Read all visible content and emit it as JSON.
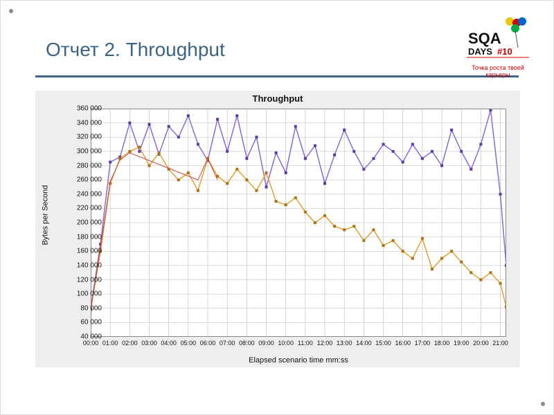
{
  "slide": {
    "title": "Отчет 2. Throughput",
    "underline_color": "#3c6482",
    "title_color": "#3c6482",
    "title_fontsize": 28
  },
  "logo": {
    "main": "SQA",
    "sub": "DAYS#10",
    "tagline": "Точка роста твоей карьеры",
    "balloon_colors": [
      "#e8c800",
      "#cc0000",
      "#0066cc",
      "#00aa44"
    ]
  },
  "chart": {
    "type": "line",
    "title": "Throughput",
    "title_fontsize": 13,
    "xlabel": "Elapsed scenario time mm:ss",
    "ylabel": "Bytes per Second",
    "label_fontsize": 11,
    "background_color": "#eeeeee",
    "plot_bg_color": "#ffffff",
    "grid_color": "#bbbbbb",
    "grid_on": true,
    "border_color": "#888888",
    "ylim": [
      40000,
      360000
    ],
    "ytick_step": 20000,
    "ytick_labels": [
      "40 000",
      "60 000",
      "80 000",
      "100 000",
      "120 000",
      "140 000",
      "160 000",
      "180 000",
      "200 000",
      "220 000",
      "240 000",
      "260 000",
      "280 000",
      "300 000",
      "320 000",
      "340 000",
      "360 000"
    ],
    "xtick_labels": [
      "00:00",
      "01:00",
      "02:00",
      "03:00",
      "04:00",
      "05:00",
      "06:00",
      "07:00",
      "08:00",
      "09:00",
      "10:00",
      "11:00",
      "12:00",
      "13:00",
      "14:00",
      "15:00",
      "16:00",
      "17:00",
      "18:00",
      "19:00",
      "20:00",
      "21:00"
    ],
    "x_categories_minutes": [
      0,
      0.5,
      1,
      1.5,
      2,
      2.5,
      3,
      3.5,
      4,
      4.5,
      5,
      5.5,
      6,
      6.5,
      7,
      7.5,
      8,
      8.5,
      9,
      9.5,
      10,
      10.5,
      11,
      11.5,
      12,
      12.5,
      13,
      13.5,
      14,
      14.5,
      15,
      15.5,
      16,
      16.5,
      17,
      17.5,
      18,
      18.5,
      19,
      19.5,
      20,
      20.5,
      21,
      21.3
    ],
    "xlim": [
      0,
      21.3
    ],
    "series": [
      {
        "name": "purple",
        "color": "#8a6bd6",
        "line_width": 1.5,
        "marker": "square",
        "marker_size": 4,
        "marker_color": "#5a3aa6",
        "values": [
          80000,
          170000,
          285000,
          292000,
          340000,
          300000,
          338000,
          296000,
          335000,
          320000,
          350000,
          310000,
          287000,
          345000,
          300000,
          350000,
          290000,
          320000,
          250000,
          298000,
          270000,
          335000,
          290000,
          308000,
          255000,
          295000,
          330000,
          300000,
          275000,
          290000,
          310000,
          300000,
          285000,
          310000,
          290000,
          300000,
          280000,
          330000,
          300000,
          275000,
          310000,
          358000,
          240000,
          140000
        ]
      },
      {
        "name": "orange",
        "color": "#e0a030",
        "line_width": 1.5,
        "marker": "square",
        "marker_size": 4,
        "marker_color": "#b07010",
        "values": [
          78000,
          160000,
          255000,
          290000,
          300000,
          306000,
          280000,
          298000,
          275000,
          260000,
          270000,
          245000,
          290000,
          265000,
          255000,
          275000,
          260000,
          245000,
          270000,
          230000,
          225000,
          235000,
          215000,
          200000,
          210000,
          195000,
          190000,
          195000,
          175000,
          190000,
          168000,
          175000,
          160000,
          150000,
          178000,
          135000,
          150000,
          160000,
          145000,
          130000,
          120000,
          130000,
          115000,
          82000
        ]
      },
      {
        "name": "red",
        "color": "#d04040",
        "line_width": 1,
        "marker": "none",
        "marker_size": 0,
        "marker_color": "#d04040",
        "partial_x": [
          0,
          0.5,
          1,
          1.5,
          2,
          5.5,
          6,
          6.5
        ],
        "partial_values": [
          78000,
          165000,
          258000,
          288000,
          298000,
          260000,
          290000,
          260000
        ]
      }
    ]
  }
}
